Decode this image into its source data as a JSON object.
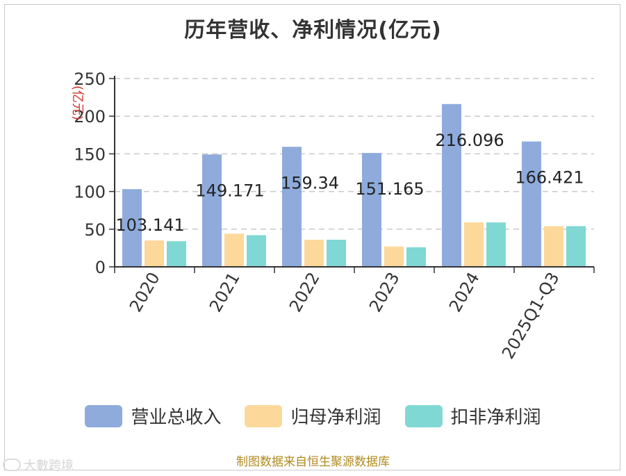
{
  "page": {
    "source": "制图数据来自恒生聚源数据库",
    "watermark": "大數跨境"
  },
  "chart_data": {
    "type": "bar",
    "title": "历年营收、净利情况(亿元)",
    "ylabel": "(亿元)",
    "ylim": [
      0,
      250
    ],
    "yticks": [
      0,
      50,
      100,
      150,
      200,
      250
    ],
    "grid": true,
    "legend_position": "bottom",
    "categories": [
      "2020",
      "2021",
      "2022",
      "2023",
      "2024",
      "2025Q1-Q3"
    ],
    "series": [
      {
        "name": "营业总收入",
        "color": "#8eabdc",
        "values": [
          103.141,
          149.171,
          159.34,
          151.165,
          216.096,
          166.421
        ]
      },
      {
        "name": "归母净利润",
        "color": "#fdd89b",
        "values": [
          35,
          44,
          36,
          27,
          59,
          54
        ]
      },
      {
        "name": "扣非净利润",
        "color": "#80d8d4",
        "values": [
          34,
          42,
          36,
          26,
          59,
          54
        ]
      }
    ],
    "data_labels": [
      "103.141",
      "149.171",
      "159.34",
      "151.165",
      "216.096",
      "166.421"
    ]
  }
}
